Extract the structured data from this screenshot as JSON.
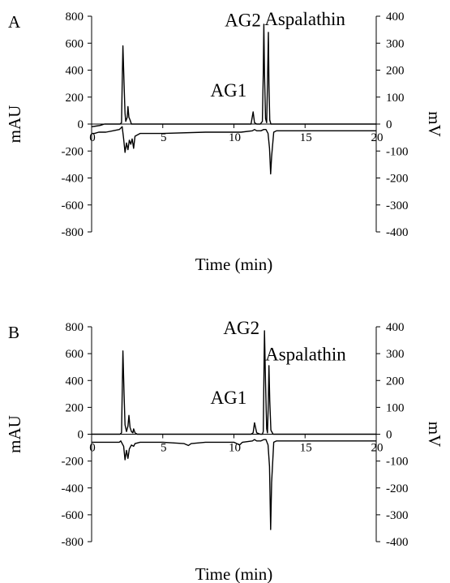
{
  "chart_data": [
    {
      "type": "line",
      "panel_label": "A",
      "xlabel": "Time (min)",
      "ylabel_left": "mAU",
      "ylabel_right": "mV",
      "xlim": [
        0,
        20
      ],
      "ylim_left": [
        -800,
        800
      ],
      "ylim_right": [
        -400,
        400
      ],
      "x_ticks": [
        "0",
        "5",
        "10",
        "15",
        "20"
      ],
      "y_ticks_left": [
        "800",
        "600",
        "400",
        "200",
        "0",
        "-200",
        "-400",
        "-600",
        "-800"
      ],
      "y_ticks_right": [
        "400",
        "300",
        "200",
        "100",
        "0",
        "-100",
        "-200",
        "-300",
        "-400"
      ],
      "annotations": [
        "AG2",
        "Aspalathin",
        "AG1"
      ],
      "series": [
        {
          "axis": "left",
          "x": [
            0,
            0.3,
            0.6,
            0.9,
            1.8,
            2.0,
            2.1,
            2.15,
            2.2,
            2.28,
            2.35,
            2.4,
            2.5,
            2.55,
            2.62,
            2.7,
            2.8,
            2.9,
            3.0,
            5.0,
            8.0,
            10.5,
            11.2,
            11.35,
            11.45,
            11.6,
            11.85,
            12.0,
            12.06,
            12.1,
            12.15,
            12.22,
            12.3,
            12.36,
            12.42,
            12.46,
            12.52,
            12.6,
            12.75,
            13.0,
            15.0,
            20.0
          ],
          "y": [
            -20,
            -15,
            -10,
            0,
            0,
            0,
            10,
            300,
            580,
            300,
            80,
            20,
            50,
            130,
            50,
            30,
            0,
            0,
            0,
            0,
            0,
            0,
            0,
            90,
            10,
            0,
            0,
            20,
            380,
            740,
            380,
            40,
            10,
            300,
            680,
            300,
            30,
            0,
            0,
            0,
            0,
            0
          ]
        },
        {
          "axis": "right",
          "x": [
            0,
            0.2,
            0.5,
            1.0,
            1.5,
            1.95,
            2.05,
            2.15,
            2.25,
            2.35,
            2.45,
            2.55,
            2.65,
            2.75,
            2.85,
            2.95,
            3.05,
            3.4,
            5.0,
            8.0,
            10.5,
            11.3,
            11.45,
            11.6,
            11.9,
            12.1,
            12.25,
            12.4,
            12.5,
            12.58,
            12.65,
            12.8,
            13.0,
            15.0,
            20.0
          ],
          "y": [
            -35,
            -35,
            -30,
            -30,
            -25,
            -20,
            -15,
            -10,
            -55,
            -105,
            -70,
            -95,
            -60,
            -75,
            -55,
            -90,
            -45,
            -35,
            -35,
            -30,
            -30,
            -25,
            -20,
            -25,
            -25,
            -20,
            -20,
            -35,
            -90,
            -185,
            -120,
            -30,
            -25,
            -25,
            -25
          ]
        }
      ]
    },
    {
      "type": "line",
      "panel_label": "B",
      "xlabel": "Time (min)",
      "ylabel_left": "mAU",
      "ylabel_right": "mV",
      "xlim": [
        0,
        20
      ],
      "ylim_left": [
        -800,
        800
      ],
      "ylim_right": [
        -400,
        400
      ],
      "x_ticks": [
        "0",
        "5",
        "10",
        "15",
        "20"
      ],
      "y_ticks_left": [
        "800",
        "600",
        "400",
        "200",
        "0",
        "-200",
        "-400",
        "-600",
        "-800"
      ],
      "y_ticks_right": [
        "400",
        "300",
        "200",
        "100",
        "0",
        "-100",
        "-200",
        "-300",
        "-400"
      ],
      "annotations": [
        "AG2",
        "Aspalathin",
        "AG1"
      ],
      "series": [
        {
          "axis": "left",
          "x": [
            0,
            1.0,
            1.8,
            2.0,
            2.1,
            2.15,
            2.2,
            2.28,
            2.35,
            2.45,
            2.55,
            2.62,
            2.7,
            2.8,
            2.9,
            2.95,
            3.05,
            3.2,
            5.0,
            8.0,
            10.5,
            11.2,
            11.35,
            11.45,
            11.6,
            11.85,
            12.0,
            12.06,
            12.1,
            12.15,
            12.22,
            12.3,
            12.36,
            12.42,
            12.46,
            12.52,
            12.6,
            12.75,
            13.0,
            15.0,
            20.0
          ],
          "y": [
            0,
            0,
            0,
            0,
            10,
            300,
            620,
            300,
            70,
            20,
            60,
            140,
            50,
            20,
            10,
            40,
            10,
            0,
            0,
            0,
            0,
            0,
            10,
            85,
            10,
            0,
            0,
            20,
            380,
            770,
            380,
            40,
            10,
            250,
            510,
            250,
            30,
            0,
            0,
            0,
            0
          ]
        },
        {
          "axis": "right",
          "x": [
            0,
            0.5,
            1.0,
            1.5,
            1.95,
            2.05,
            2.15,
            2.25,
            2.35,
            2.45,
            2.55,
            2.65,
            2.8,
            2.95,
            3.05,
            3.4,
            5.0,
            6.5,
            6.8,
            7.0,
            8.0,
            10.0,
            10.4,
            10.6,
            11.3,
            11.45,
            11.6,
            11.9,
            12.1,
            12.25,
            12.4,
            12.5,
            12.58,
            12.65,
            12.8,
            13.0,
            15.0,
            20.0
          ],
          "y": [
            -30,
            -30,
            -30,
            -30,
            -30,
            -25,
            -35,
            -45,
            -95,
            -60,
            -90,
            -55,
            -40,
            -45,
            -35,
            -30,
            -30,
            -35,
            -42,
            -35,
            -30,
            -30,
            -40,
            -30,
            -25,
            -20,
            -25,
            -25,
            -20,
            -20,
            -40,
            -120,
            -355,
            -180,
            -30,
            -25,
            -25,
            -25
          ]
        }
      ]
    }
  ]
}
